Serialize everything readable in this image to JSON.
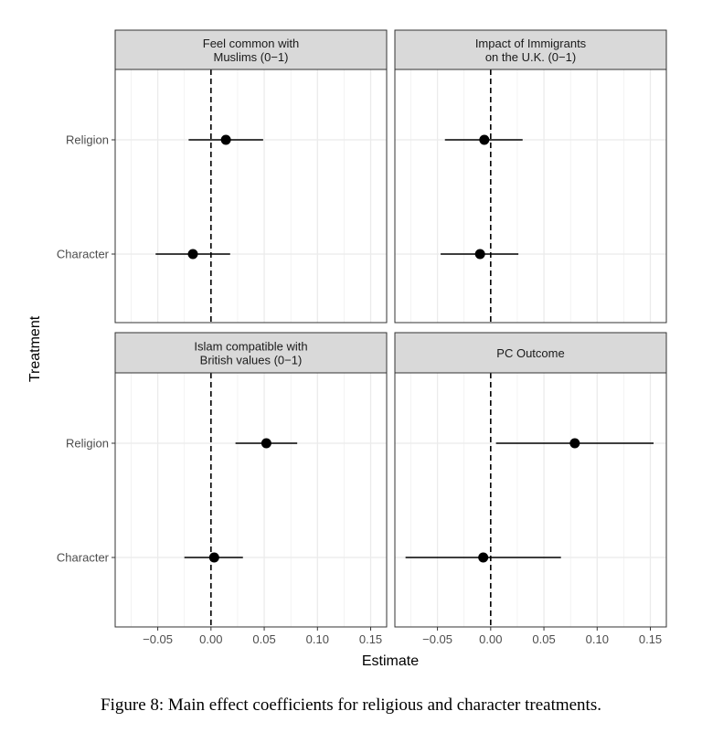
{
  "chart_data": {
    "type": "scatter",
    "subtype": "coefficient-plot-with-intervals",
    "xlabel": "Estimate",
    "ylabel": "Treatment",
    "xlim": [
      -0.09,
      0.165
    ],
    "xticks": [
      -0.05,
      0.0,
      0.05,
      0.1,
      0.15
    ],
    "xtick_labels": [
      "−0.05",
      "0.00",
      "0.05",
      "0.10",
      "0.15"
    ],
    "categories": [
      "Religion",
      "Character"
    ],
    "reference_line": {
      "x": 0,
      "style": "dashed"
    },
    "grid": true,
    "facets": [
      {
        "title_lines": [
          "Feel common with",
          "Muslims (0−1)"
        ],
        "points": [
          {
            "treatment": "Religion",
            "estimate": 0.014,
            "low": -0.021,
            "high": 0.049
          },
          {
            "treatment": "Character",
            "estimate": -0.017,
            "low": -0.052,
            "high": 0.018
          }
        ]
      },
      {
        "title_lines": [
          "Impact of Immigrants",
          "on the U.K. (0−1)"
        ],
        "points": [
          {
            "treatment": "Religion",
            "estimate": -0.006,
            "low": -0.043,
            "high": 0.03
          },
          {
            "treatment": "Character",
            "estimate": -0.01,
            "low": -0.047,
            "high": 0.026
          }
        ]
      },
      {
        "title_lines": [
          "Islam compatible with",
          "British values (0−1)"
        ],
        "points": [
          {
            "treatment": "Religion",
            "estimate": 0.052,
            "low": 0.023,
            "high": 0.081
          },
          {
            "treatment": "Character",
            "estimate": 0.003,
            "low": -0.025,
            "high": 0.03
          }
        ]
      },
      {
        "title_lines": [
          "PC Outcome"
        ],
        "points": [
          {
            "treatment": "Religion",
            "estimate": 0.079,
            "low": 0.005,
            "high": 0.153
          },
          {
            "treatment": "Character",
            "estimate": -0.007,
            "low": -0.08,
            "high": 0.066
          }
        ]
      }
    ]
  },
  "caption": "Figure 8: Main effect coefficients for religious and character treatments."
}
